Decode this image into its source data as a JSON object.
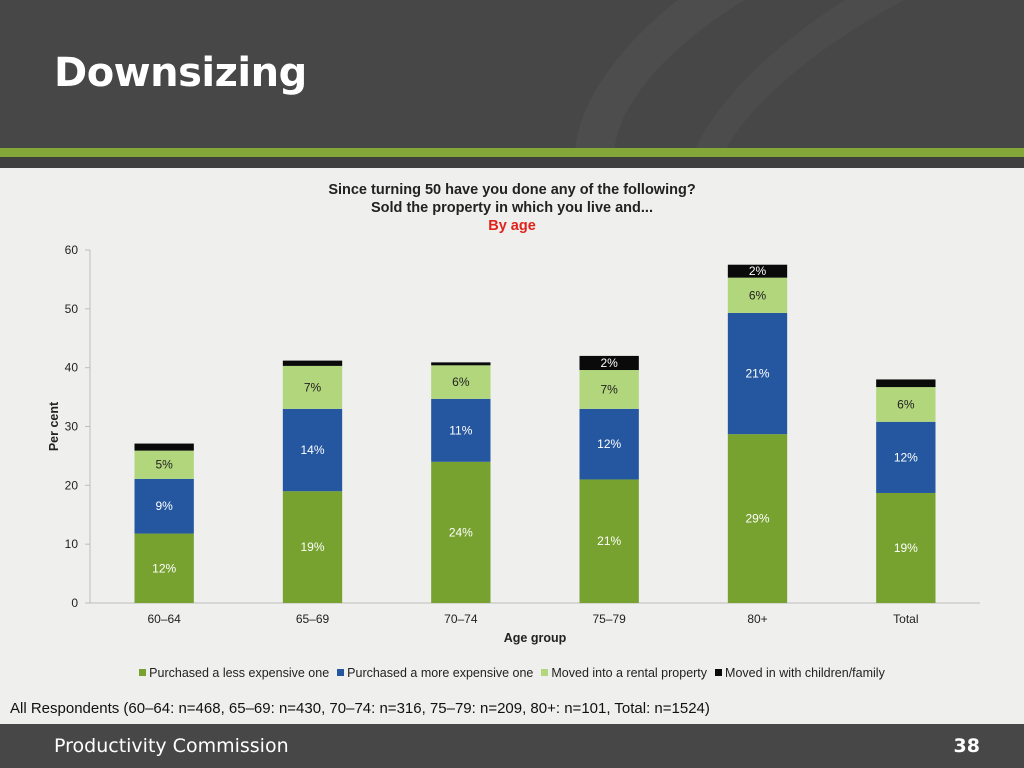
{
  "slide": {
    "title": "Downsizing",
    "footer_org": "Productivity Commission",
    "page_number": "38",
    "footnote": "All Respondents (60–64: n=468, 65–69: n=430, 70–74: n=316, 75–79: n=209, 80+: n=101, Total: n=1524)"
  },
  "chart_data": {
    "type": "bar",
    "stacked": true,
    "title_line1": "Since turning 50 have you done any of the following?",
    "title_line2": "Sold the property in which you live and...",
    "subtitle": "By age",
    "xlabel": "Age group",
    "ylabel": "Per cent",
    "ylim": [
      0,
      60
    ],
    "yticks": [
      0,
      10,
      20,
      30,
      40,
      50,
      60
    ],
    "grid": false,
    "legend_position": "bottom",
    "categories": [
      "60–64",
      "65–69",
      "70–74",
      "75–79",
      "80+",
      "Total"
    ],
    "series": [
      {
        "name": "Purchased a less expensive one",
        "color": "#77a22f",
        "label_color": "#ffffff",
        "values": [
          11.8,
          19.0,
          24.0,
          21.0,
          28.7,
          18.7
        ],
        "labels": [
          "12%",
          "19%",
          "24%",
          "21%",
          "29%",
          "19%"
        ]
      },
      {
        "name": "Purchased a more expensive one",
        "color": "#2457a0",
        "label_color": "#ffffff",
        "values": [
          9.3,
          14.0,
          10.7,
          12.0,
          20.6,
          12.1
        ],
        "labels": [
          "9%",
          "14%",
          "11%",
          "12%",
          "21%",
          "12%"
        ]
      },
      {
        "name": "Moved into a rental property",
        "color": "#b2d67c",
        "label_color": "#222222",
        "values": [
          4.8,
          7.3,
          5.7,
          6.6,
          6.0,
          5.9
        ],
        "labels": [
          "5%",
          "7%",
          "6%",
          "7%",
          "6%",
          "6%"
        ]
      },
      {
        "name": "Moved in with children/family",
        "color": "#0a0a0a",
        "label_color": "#ffffff",
        "values": [
          1.2,
          0.9,
          0.5,
          2.4,
          2.2,
          1.3
        ],
        "labels": [
          "",
          "",
          "",
          "2%",
          "2%",
          ""
        ]
      }
    ]
  }
}
